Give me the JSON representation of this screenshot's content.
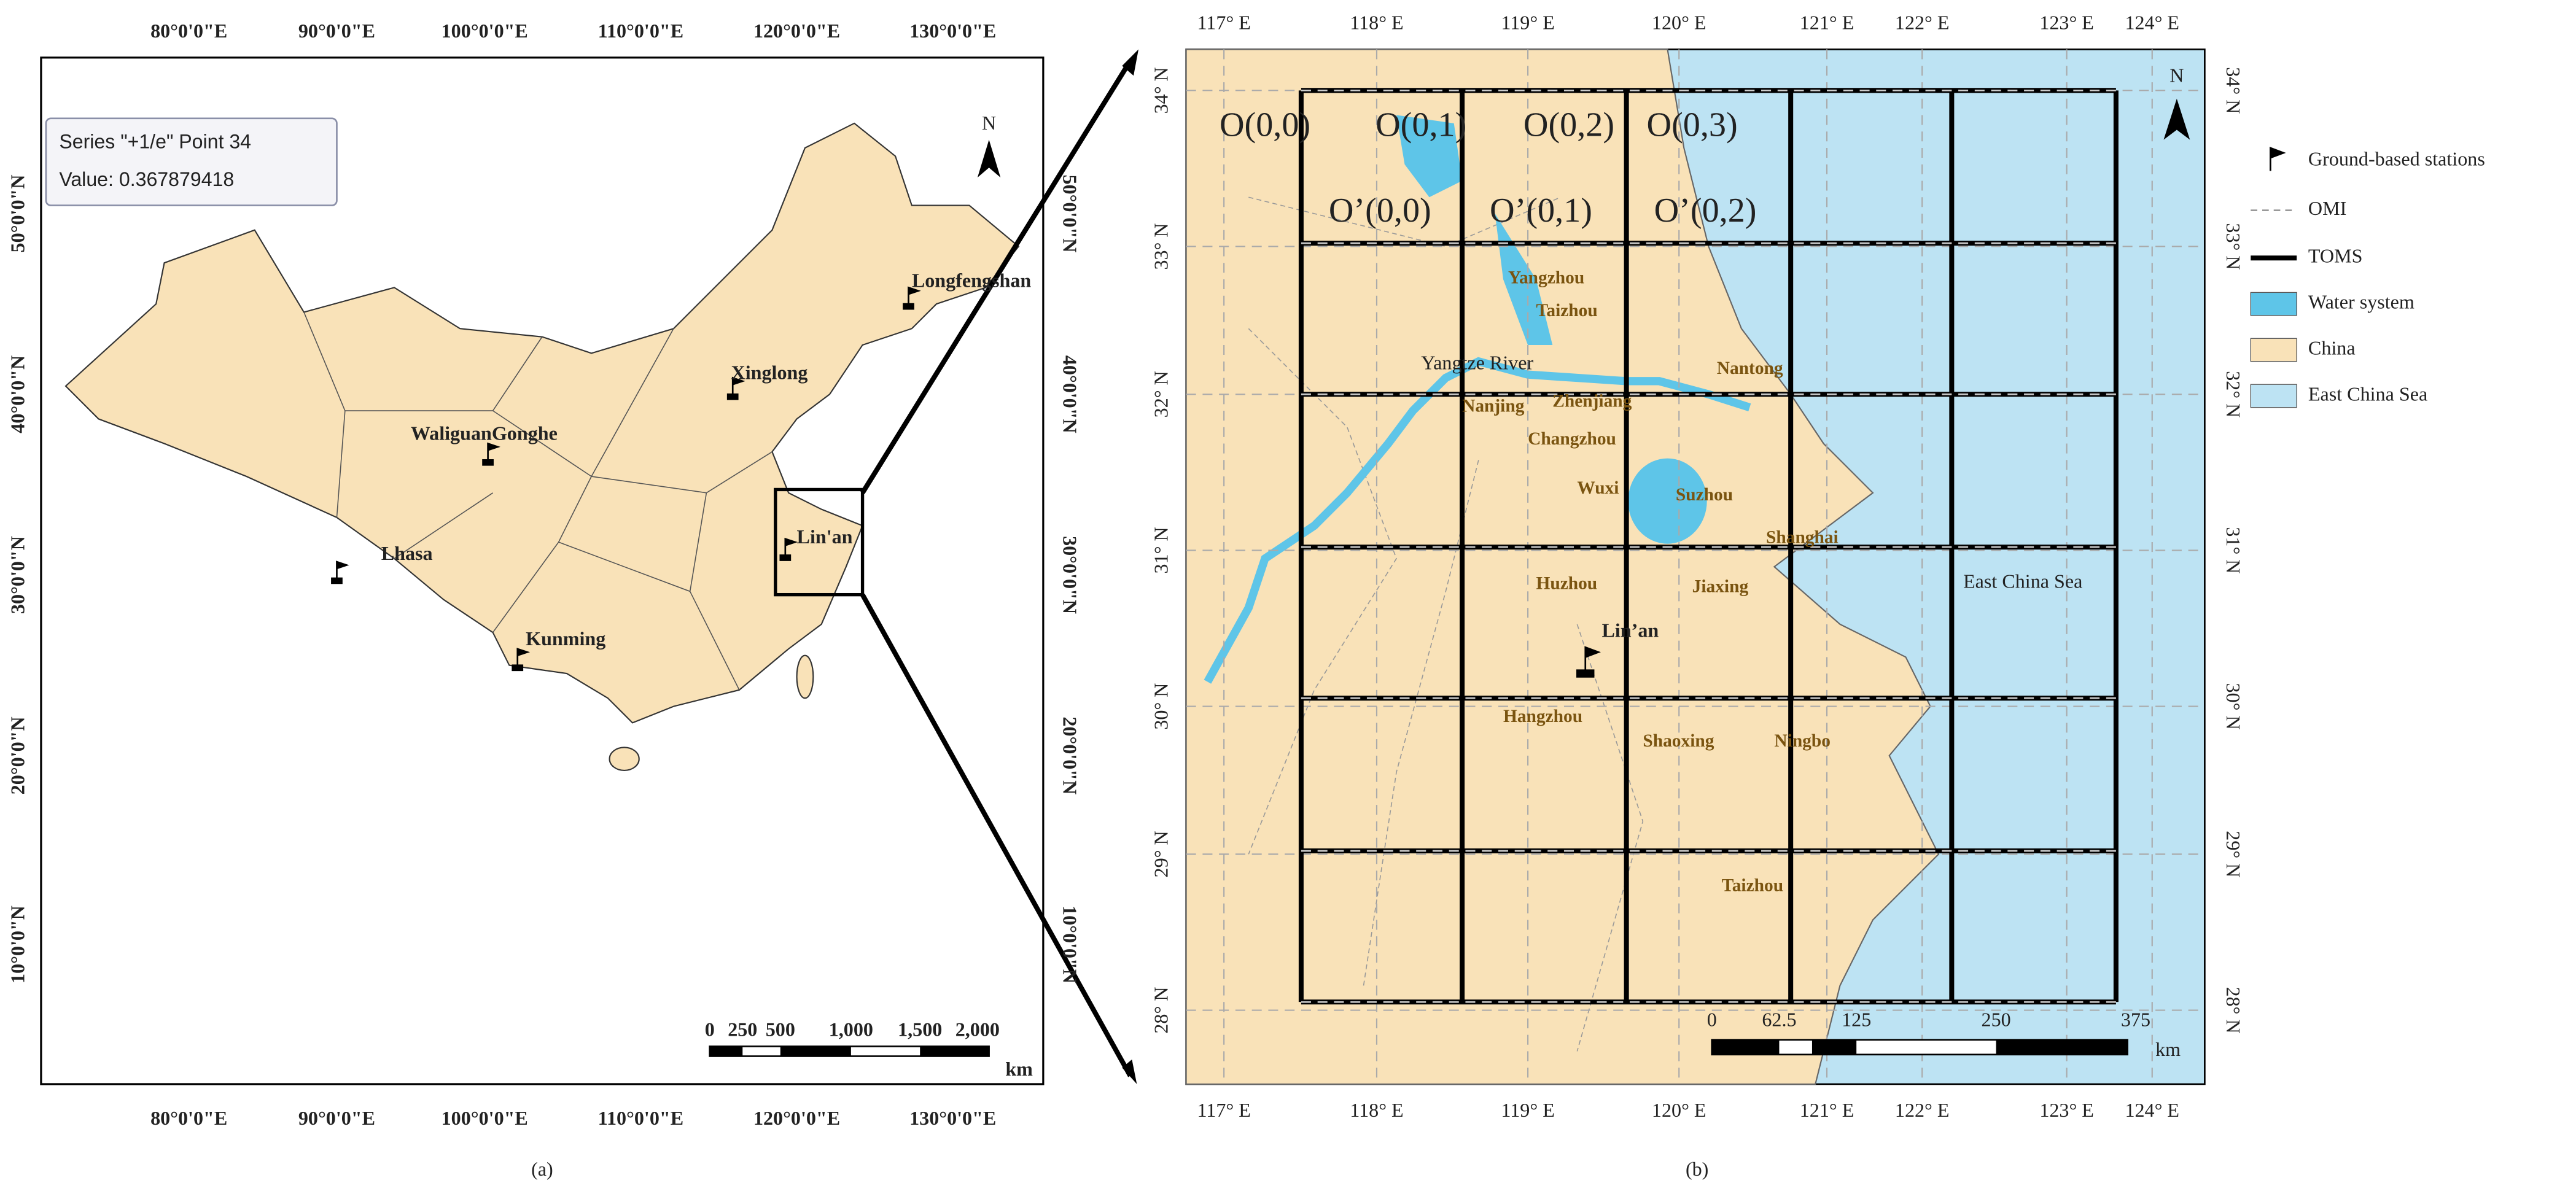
{
  "panel_a": {
    "caption": "(a)",
    "lon_labels": [
      "80°0'0\"E",
      "90°0'0\"E",
      "100°0'0\"E",
      "110°0'0\"E",
      "120°0'0\"E",
      "130°0'0\"E"
    ],
    "lat_labels": [
      "50°0'0\"N",
      "40°0'0\"N",
      "30°0'0\"N",
      "20°0'0\"N",
      "10°0'0\"N"
    ],
    "tooltip": {
      "line1": "Series \"+1/e\" Point 34",
      "line2": "Value: 0.367879418"
    },
    "stations": [
      "Longfengshan",
      "Xinglong",
      "WaliguanGonghe",
      "Lhasa",
      "Kunming",
      "Lin'an"
    ],
    "north": "N",
    "scale_labels": [
      0,
      250,
      500,
      "1,000",
      "1,500",
      "2,000"
    ],
    "scale_unit": "km"
  },
  "panel_b": {
    "caption": "(b)",
    "lon_labels": [
      "117° E",
      "118° E",
      "119° E",
      "120° E",
      "121° E",
      "122° E",
      "123° E",
      "124° E"
    ],
    "lat_labels": [
      "34° N",
      "33° N",
      "32° N",
      "31° N",
      "30° N",
      "29° N",
      "28° N"
    ],
    "omi_cells": [
      "O(0,0)",
      "O(0,1)",
      "O(0,2)",
      "O(0,3)"
    ],
    "toms_cells": [
      "O’(0,0)",
      "O’(0,1)",
      "O’(0,2)"
    ],
    "cities": [
      "Yangzhou",
      "Taizhou",
      "Nantong",
      "Nanjing",
      "Zhenjiang",
      "Changzhou",
      "Wuxi",
      "Suzhou",
      "Shanghai",
      "Huzhou",
      "Jiaxing",
      "Hangzhou",
      "Shaoxing",
      "Ningbo",
      "Taizhou"
    ],
    "station": "Lin’an",
    "river": "Yangtze River",
    "sea": "East China Sea",
    "north": "N",
    "scale_labels": [
      0,
      62.5,
      125,
      250,
      375
    ],
    "scale_unit": "km",
    "legend": [
      "Ground-based stations",
      "OMI",
      "TOMS",
      "Water system",
      "China",
      "East China Sea"
    ]
  }
}
